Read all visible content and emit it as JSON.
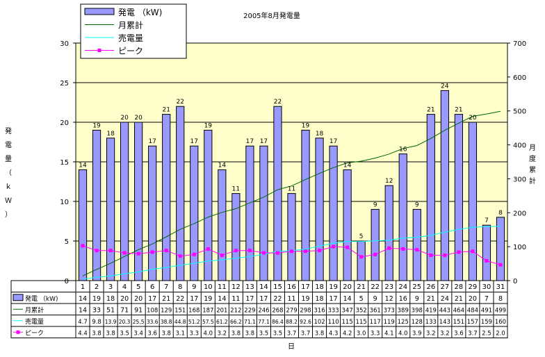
{
  "chart_data": {
    "type": "bar",
    "title": "2005年8月発電量",
    "xlabel": "日",
    "ylabel_left": "発電量（ｋＷ）",
    "ylabel_right": "月度累計",
    "ylim_left": [
      0,
      30
    ],
    "yticks_left": [
      0,
      5,
      10,
      15,
      20,
      25,
      30
    ],
    "ylim_right": [
      0,
      700
    ],
    "yticks_right": [
      0,
      100,
      200,
      300,
      400,
      500,
      600,
      700
    ],
    "grid": true,
    "legend_position": "top-left",
    "categories": [
      "1",
      "2",
      "3",
      "4",
      "5",
      "6",
      "7",
      "8",
      "9",
      "10",
      "11",
      "12",
      "13",
      "14",
      "15",
      "16",
      "17",
      "18",
      "19",
      "20",
      "21",
      "22",
      "23",
      "24",
      "25",
      "26",
      "27",
      "28",
      "29",
      "30",
      "31"
    ],
    "series": [
      {
        "name": "発電 （kW)",
        "type": "bar",
        "axis": "left",
        "color": "#9999ff",
        "values": [
          14,
          19,
          18,
          20,
          20,
          17,
          21,
          22,
          17,
          19,
          14,
          11,
          17,
          17,
          22,
          11,
          19,
          18,
          17,
          14,
          5,
          9,
          12,
          16,
          9,
          21,
          24,
          21,
          20,
          7,
          8
        ]
      },
      {
        "name": "月累計",
        "type": "line",
        "axis": "right",
        "color": "#006600",
        "values": [
          14,
          33,
          51,
          71,
          91,
          108,
          129,
          151,
          168,
          187,
          201,
          212,
          229,
          246,
          268,
          279,
          298,
          316,
          333,
          347,
          352,
          361,
          373,
          389,
          398,
          419,
          443,
          464,
          484,
          491,
          499
        ]
      },
      {
        "name": "売電量",
        "type": "line",
        "axis": "right",
        "color": "#00ffff",
        "values": [
          4.7,
          9.8,
          13.9,
          20.3,
          25.5,
          33.6,
          38.8,
          44.8,
          51.2,
          57.5,
          61.2,
          66.2,
          71.1,
          77.1,
          86.4,
          88.2,
          92.6,
          102,
          110,
          115,
          115,
          117,
          119,
          125,
          128,
          133,
          143,
          151,
          157,
          159,
          160
        ]
      },
      {
        "name": "ピーク",
        "type": "line",
        "axis": "left",
        "color": "#ff00ff",
        "values": [
          4.4,
          3.8,
          3.8,
          3.5,
          3.4,
          3.6,
          3.8,
          3.1,
          3.3,
          4.0,
          3.2,
          3.8,
          3.8,
          3.5,
          3.5,
          3.7,
          3.7,
          3.8,
          4.3,
          4.2,
          3.0,
          3.3,
          4.1,
          4.0,
          3.9,
          3.2,
          3.2,
          3.6,
          3.7,
          2.5,
          2.0
        ]
      }
    ],
    "table": {
      "rows": [
        {
          "label": "発電 （kW)",
          "cells": [
            "14",
            "19",
            "18",
            "20",
            "20",
            "17",
            "21",
            "22",
            "17",
            "19",
            "14",
            "11",
            "17",
            "17",
            "22",
            "11",
            "19",
            "18",
            "17",
            "14",
            "5",
            "9",
            "12",
            "16",
            "9",
            "21",
            "24",
            "21",
            "20",
            "7",
            "8"
          ]
        },
        {
          "label": "月累計",
          "cells": [
            "14",
            "33",
            "51",
            "71",
            "91",
            "108",
            "129",
            "151",
            "168",
            "187",
            "201",
            "212",
            "229",
            "246",
            "268",
            "279",
            "298",
            "316",
            "333",
            "347",
            "352",
            "361",
            "373",
            "389",
            "398",
            "419",
            "443",
            "464",
            "484",
            "491",
            "499"
          ]
        },
        {
          "label": "売電量",
          "cells": [
            "4.7",
            "9.8",
            "13.9",
            "20.3",
            "25.5",
            "33.6",
            "38.8",
            "44.8",
            "51.2",
            "57.5",
            "61.2",
            "66.2",
            "71.1",
            "77.1",
            "86.4",
            "88.2",
            "92.6",
            "102",
            "110",
            "115",
            "115",
            "117",
            "119",
            "125",
            "128",
            "133",
            "143",
            "151",
            "157",
            "159",
            "160"
          ]
        },
        {
          "label": "ピーク",
          "cells": [
            "4.4",
            "3.8",
            "3.8",
            "3.5",
            "3.4",
            "3.6",
            "3.8",
            "3.1",
            "3.3",
            "4.0",
            "3.2",
            "3.8",
            "3.8",
            "3.5",
            "3.5",
            "3.7",
            "3.7",
            "3.8",
            "4.3",
            "4.2",
            "3.0",
            "3.3",
            "4.1",
            "4.0",
            "3.9",
            "3.2",
            "3.2",
            "3.6",
            "3.7",
            "2.5",
            "2.0"
          ]
        }
      ]
    }
  },
  "colors": {
    "plot_background": "#ffffcc",
    "bar_fill": "#9999ff",
    "cumulative_line": "#006600",
    "sold_line": "#00ffff",
    "peak_line": "#ff00ff"
  }
}
